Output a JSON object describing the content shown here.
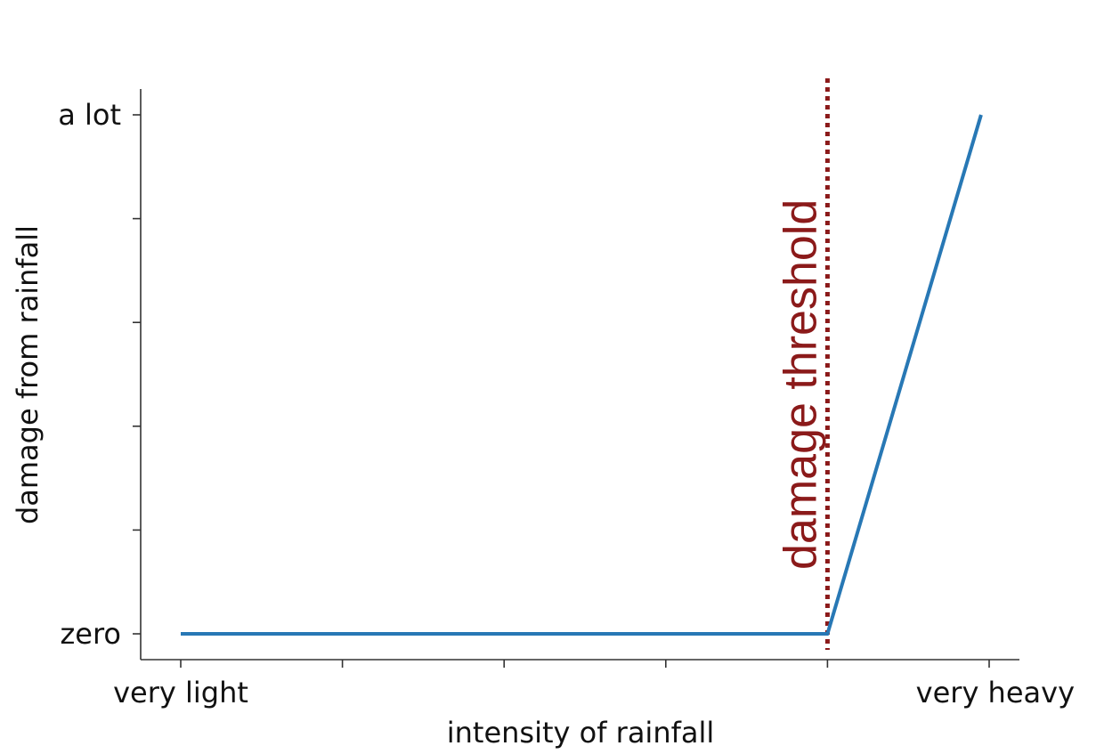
{
  "chart_data": {
    "type": "line",
    "title": "",
    "xlabel": "intensity of rainfall",
    "ylabel": "damage from rainfall",
    "xlim": [
      0,
      5
    ],
    "ylim": [
      0,
      5
    ],
    "x_ticks": [
      0,
      1,
      2,
      3,
      4,
      5
    ],
    "x_tick_labels": [
      "very light",
      "",
      "",
      "",
      "",
      "very heavy"
    ],
    "y_ticks": [
      0,
      1,
      2,
      3,
      4,
      5
    ],
    "y_tick_labels": [
      "zero",
      "",
      "",
      "",
      "",
      "a lot"
    ],
    "grid": false,
    "series": [
      {
        "x": [
          0,
          4,
          4.95
        ],
        "y": [
          0,
          0,
          5
        ],
        "color": "#2878b5"
      }
    ],
    "threshold": {
      "x": 4,
      "label": "damage threshold",
      "color": "#8b1a1a",
      "style": "dotted"
    }
  }
}
